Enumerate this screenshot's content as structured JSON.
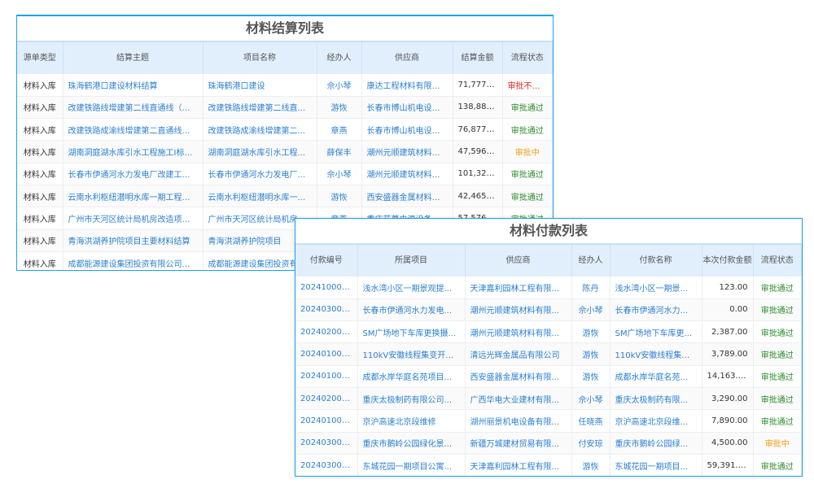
{
  "settlement": {
    "title": "材料结算列表",
    "columns": [
      "源单类型",
      "结算主题",
      "项目名称",
      "经办人",
      "供应商",
      "结算金额",
      "流程状态"
    ],
    "rows": [
      [
        "材料入库",
        "珠海鹤港口建设材料结算",
        "珠海鹤港口建设",
        "佘小琴",
        "康达工程材料有限公司",
        "71,777.00",
        "审批不通过"
      ],
      [
        "材料入库",
        "改建铁路线增建第二线直通线（成...",
        "改建铁路线增建第二线直...",
        "游恢",
        "长春市博山机电设备...",
        "138,888...",
        "审批通过"
      ],
      [
        "材料入库",
        "改建铁路成渝线增建第二直通线（...",
        "改建铁路成渝线增建第二...",
        "章燕",
        "长春市博山机电设备...",
        "76,877.00",
        "审批通过"
      ],
      [
        "材料入库",
        "湖南洞庭湖水库引水工程施工Ⅰ标材...",
        "湖南洞庭湖水库引水工程...",
        "薛保丰",
        "潮州元顺建筑材料有...",
        "47,596.00",
        "审批中"
      ],
      [
        "材料入库",
        "长春市伊通河水力发电厂改建工程...",
        "长春市伊通河水力发电厂...",
        "佘小琴",
        "潮州元顺建筑材料有...",
        "101,320...",
        "审批通过"
      ],
      [
        "材料入库",
        "云南水利枢纽潜明水库一期工程施...",
        "云南水利枢纽潜明水库一...",
        "游恢",
        "西安盛器金属材料有...",
        "42,465.00",
        "审批通过"
      ],
      [
        "材料入库",
        "广州市天河区统计局机房改造项目...",
        "广州市天河区统计局机房...",
        "章燕",
        "重庆艺尊电源设备有...",
        "57,576.00",
        "审批通过"
      ],
      [
        "材料入库",
        "青海洪湖养护院项目主要材料结算",
        "青海洪湖养护院项目",
        "",
        "",
        "",
        ""
      ],
      [
        "材料入库",
        "成都能源建设集团投资有限公司临...",
        "成都能源建设集团投资有...",
        "",
        "",
        "",
        ""
      ]
    ]
  },
  "payment": {
    "title": "材料付款列表",
    "columns": [
      "付款编号",
      "所属项目",
      "供应商",
      "经办人",
      "付款名称",
      "本次付款金额",
      "流程状态"
    ],
    "rows": [
      [
        "2024100001",
        "浅水湾小区一期景观提...",
        "天津嘉利园林工程有限...",
        "陈丹",
        "浅水湾小区一期景...",
        "123.00",
        "审批通过"
      ],
      [
        "2024030007",
        "长春市伊通河水力发电...",
        "潮州元顺建筑材料有限...",
        "佘小琴",
        "长春市伊通河水力...",
        "0.00",
        "审批通过"
      ],
      [
        "2024020012",
        "SM广场地下车库更换摄...",
        "潮州元顺建筑材料有限...",
        "游恢",
        "SM广场地下车库更...",
        "2,387.00",
        "审批通过"
      ],
      [
        "2024010010",
        "110kV安徽线程集变开断...",
        "清远光辉金属品有限公司",
        "游恢",
        "110kV安徽线程集变...",
        "3,789.00",
        "审批通过"
      ],
      [
        "2024010009",
        "成都水岸华庭名苑项目...",
        "西安盛器金属材料有限...",
        "游恢",
        "成都水岸华庭名苑...",
        "14,163.00",
        "审批通过"
      ],
      [
        "2024020011",
        "重庆太极制药有限公司...",
        "广西华电大业建材有限...",
        "佘小琴",
        "重庆太极制药有限...",
        "3,290.00",
        "审批通过"
      ],
      [
        "2024010008",
        "京沪高速北京段维修",
        "湖州丽景机电设备有限...",
        "任晓燕",
        "京沪高速北京段维...",
        "7,890.00",
        "审批通过"
      ],
      [
        "2024030005",
        "重庆市鹅岭公园绿化景...",
        "新疆万城建材贸易有限...",
        "付安琼",
        "重庆市鹅岭公园绿...",
        "4,500.00",
        "审批中"
      ],
      [
        "2024030006",
        "东城花园一期项目公寓...",
        "天津嘉利园林工程有限...",
        "游恢",
        "东城花园一期项目...",
        "59,391.50",
        "审批通过"
      ]
    ]
  },
  "colors": {
    "accent": "#1aa3e8",
    "header_bg": "#e1effc",
    "link": "#2a7fd4",
    "approved": "#2b8a2b",
    "rejected": "#e8231c",
    "pending": "#f39c12"
  }
}
